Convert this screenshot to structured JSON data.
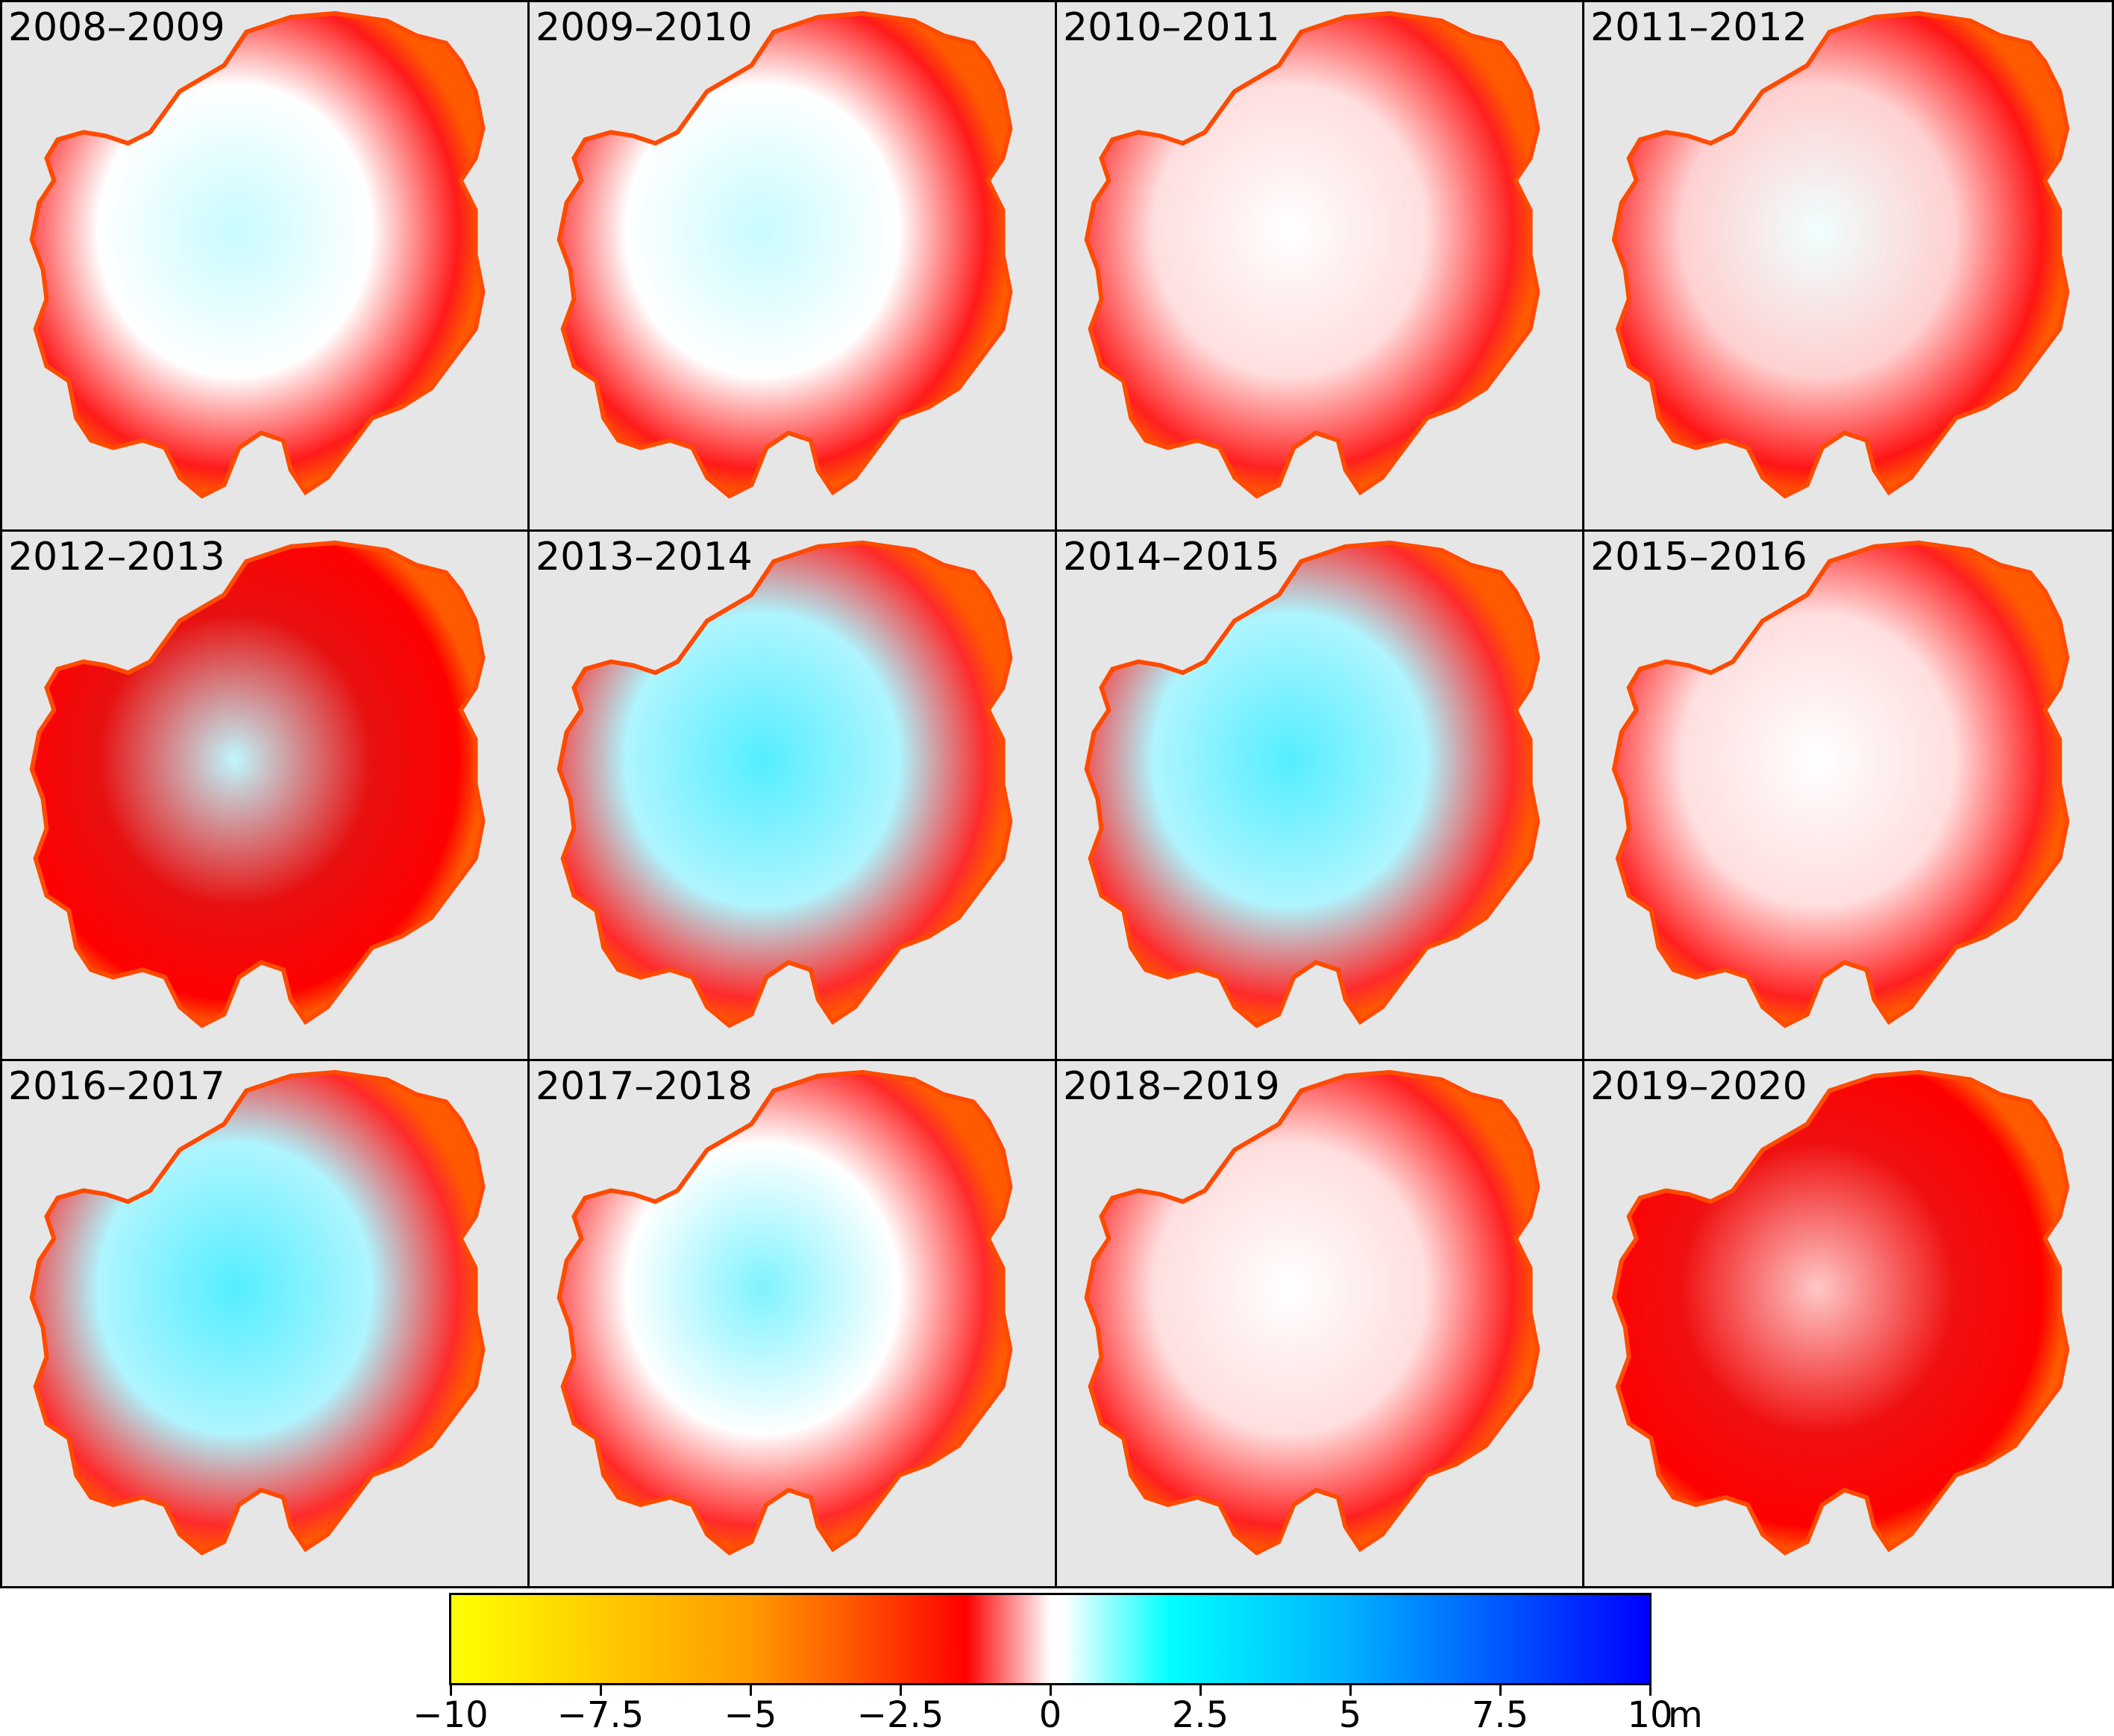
{
  "panels": [
    {
      "label": "2008–2009",
      "pattern": "wedge"
    },
    {
      "label": "2009–2010",
      "pattern": "wedge"
    },
    {
      "label": "2010–2011",
      "pattern": "mixed"
    },
    {
      "label": "2011–2012",
      "pattern": "mostly-loss"
    },
    {
      "label": "2012–2013",
      "pattern": "loss-west-gain"
    },
    {
      "label": "2013–2014",
      "pattern": "gain"
    },
    {
      "label": "2014–2015",
      "pattern": "gain"
    },
    {
      "label": "2015–2016",
      "pattern": "mixed"
    },
    {
      "label": "2016–2017",
      "pattern": "gain"
    },
    {
      "label": "2017–2018",
      "pattern": "mixed-gain"
    },
    {
      "label": "2018–2019",
      "pattern": "mixed"
    },
    {
      "label": "2019–2020",
      "pattern": "loss"
    }
  ],
  "colorbar": {
    "ticks": [
      "−10",
      "−7.5",
      "−5",
      "−2.5",
      "0",
      "2.5",
      "5",
      "7.5",
      "10"
    ],
    "unit": "m",
    "range": [
      -10,
      10
    ],
    "colors": [
      "#ffff00",
      "#ff5a00",
      "#ff0000",
      "#ffffff",
      "#00ffff",
      "#00b0ff",
      "#0000ff"
    ]
  }
}
